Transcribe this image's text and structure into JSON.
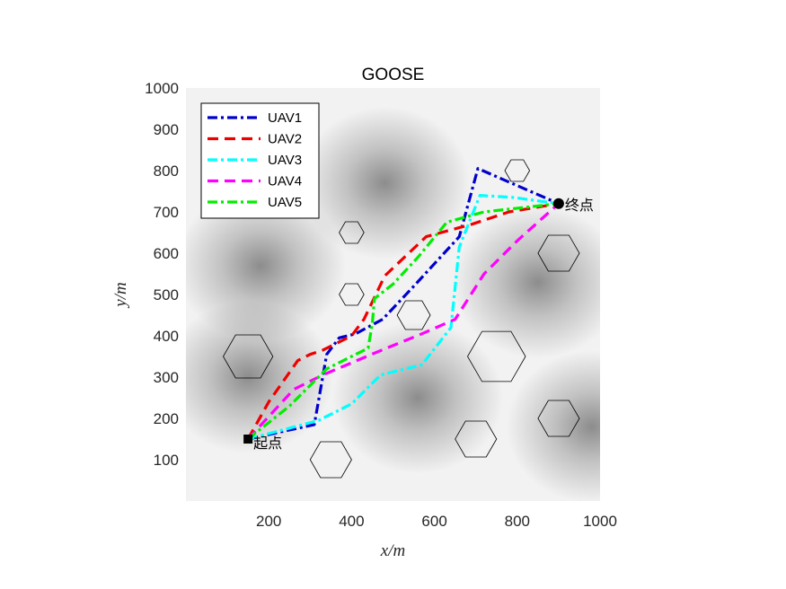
{
  "chart_data": {
    "type": "line",
    "title": "GOOSE",
    "xlabel": "x/m",
    "ylabel": "y/m",
    "xlim": [
      0,
      1000
    ],
    "ylim": [
      0,
      1000
    ],
    "xticks": [
      200,
      400,
      600,
      800,
      1000
    ],
    "yticks": [
      100,
      200,
      300,
      400,
      500,
      600,
      700,
      800,
      900,
      1000
    ],
    "legend_position": "top-left",
    "background": "threat-field",
    "start": {
      "label": "起点",
      "x": 150,
      "y": 150
    },
    "end": {
      "label": "终点",
      "x": 900,
      "y": 720
    },
    "series": [
      {
        "name": "UAV1",
        "color": "#0000cc",
        "style": "dashdot",
        "x": [
          150,
          310,
          325,
          340,
          370,
          410,
          475,
          550,
          660,
          705,
          900
        ],
        "y": [
          150,
          185,
          270,
          355,
          395,
          405,
          440,
          520,
          640,
          805,
          720
        ]
      },
      {
        "name": "UAV2",
        "color": "#ee0000",
        "style": "dashed",
        "x": [
          150,
          200,
          270,
          300,
          330,
          400,
          430,
          480,
          580,
          690,
          780,
          900
        ],
        "y": [
          150,
          240,
          340,
          355,
          365,
          400,
          440,
          545,
          640,
          670,
          700,
          720
        ]
      },
      {
        "name": "UAV3",
        "color": "#00ffff",
        "style": "dashdot",
        "x": [
          150,
          320,
          400,
          470,
          570,
          640,
          660,
          710,
          790,
          900
        ],
        "y": [
          150,
          195,
          235,
          305,
          330,
          420,
          615,
          740,
          735,
          720
        ]
      },
      {
        "name": "UAV4",
        "color": "#ff00ff",
        "style": "dashed",
        "x": [
          150,
          260,
          330,
          460,
          570,
          650,
          720,
          800,
          900
        ],
        "y": [
          150,
          270,
          305,
          360,
          405,
          440,
          550,
          630,
          720
        ]
      },
      {
        "name": "UAV5",
        "color": "#00ee00",
        "style": "dashdot",
        "x": [
          150,
          250,
          340,
          440,
          450,
          455,
          500,
          560,
          630,
          720,
          900
        ],
        "y": [
          150,
          230,
          320,
          370,
          430,
          490,
          525,
          590,
          675,
          700,
          720
        ]
      }
    ],
    "threat_centers": [
      {
        "x": 480,
        "y": 770
      },
      {
        "x": 180,
        "y": 570
      },
      {
        "x": 850,
        "y": 530
      },
      {
        "x": 560,
        "y": 250
      },
      {
        "x": 980,
        "y": 180
      },
      {
        "x": 150,
        "y": 300
      }
    ],
    "obstacles": [
      {
        "x": 150,
        "y": 350,
        "r": 60
      },
      {
        "x": 400,
        "y": 650,
        "r": 30
      },
      {
        "x": 400,
        "y": 500,
        "r": 30
      },
      {
        "x": 550,
        "y": 450,
        "r": 40
      },
      {
        "x": 800,
        "y": 800,
        "r": 30
      },
      {
        "x": 900,
        "y": 600,
        "r": 50
      },
      {
        "x": 750,
        "y": 350,
        "r": 70
      },
      {
        "x": 900,
        "y": 200,
        "r": 50
      },
      {
        "x": 700,
        "y": 150,
        "r": 50
      },
      {
        "x": 350,
        "y": 100,
        "r": 50
      }
    ]
  }
}
